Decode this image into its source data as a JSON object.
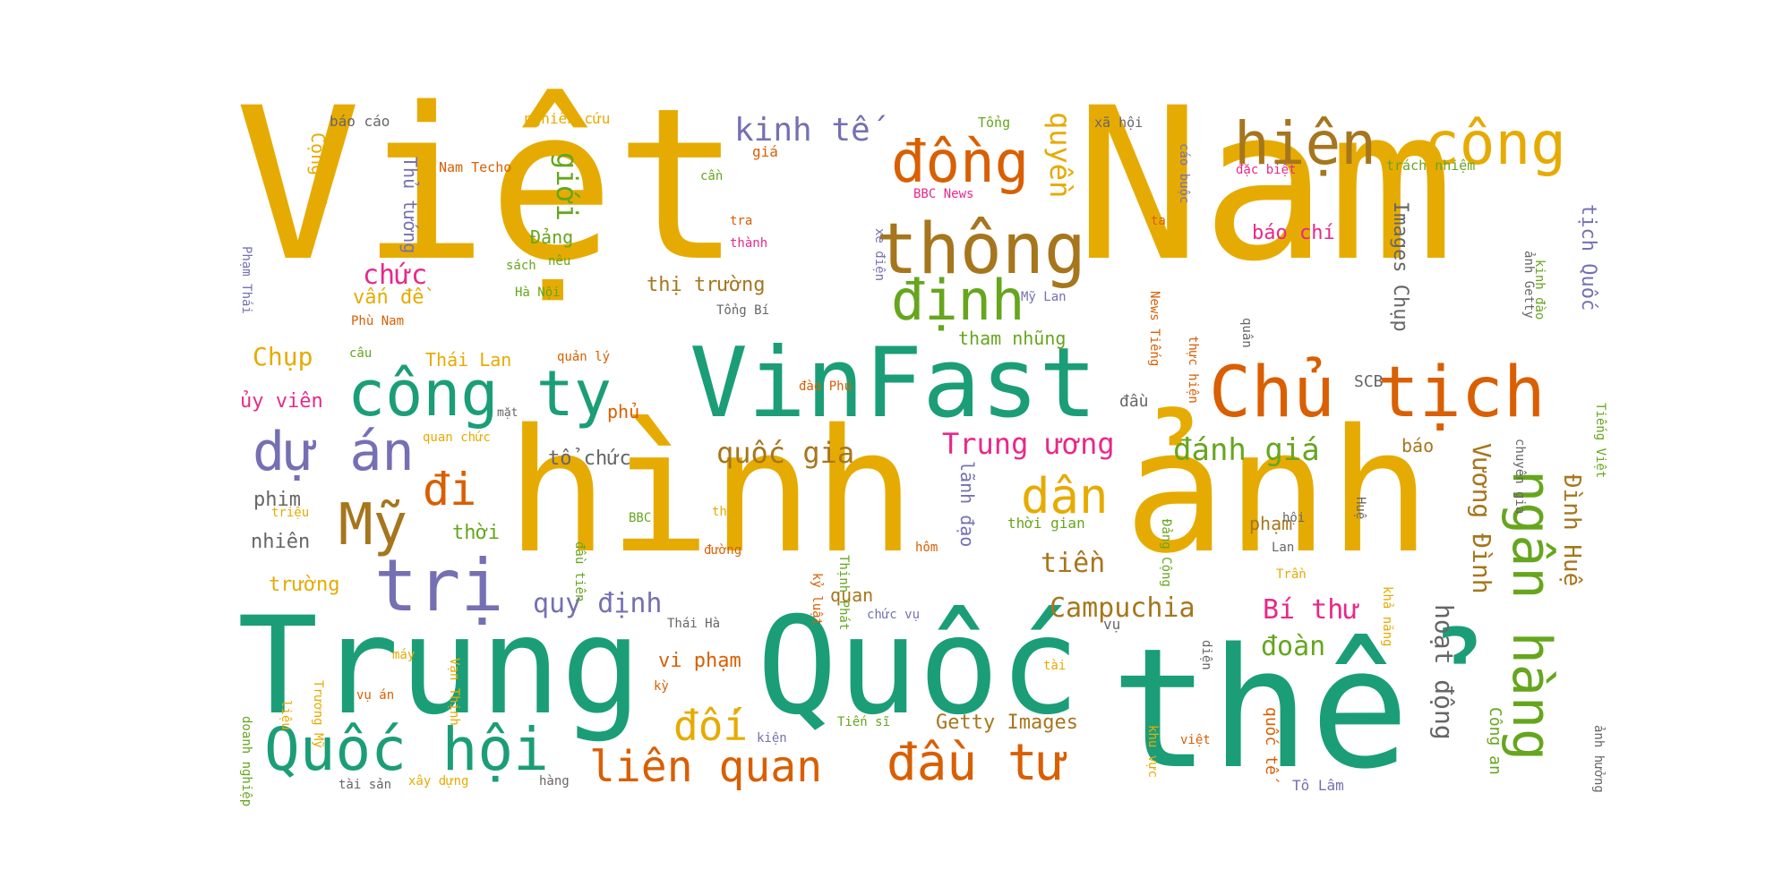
{
  "colors": {
    "gold": "#e6ab02",
    "teal": "#1b9e77",
    "orange": "#d95f02",
    "purple": "#7570b3",
    "green": "#66a61e",
    "brown": "#a6761d",
    "pink": "#e7298a",
    "gray": "#666666"
  },
  "words": [
    {
      "id": "viet",
      "text": "Việt"
    },
    {
      "id": "nam",
      "text": "Nam"
    },
    {
      "id": "hinh",
      "text": "hình"
    },
    {
      "id": "anh",
      "text": "ảnh"
    },
    {
      "id": "trung",
      "text": "Trung"
    },
    {
      "id": "quoc",
      "text": "Quốc"
    },
    {
      "id": "the",
      "text": "thể"
    },
    {
      "id": "vinfast",
      "text": "VinFast"
    },
    {
      "id": "chu-tich",
      "text": "Chủ tịch"
    },
    {
      "id": "thong",
      "text": "thông"
    },
    {
      "id": "hien",
      "text": "hiện"
    },
    {
      "id": "cong",
      "text": "công"
    },
    {
      "id": "dong",
      "text": "đồng"
    },
    {
      "id": "dinh",
      "text": "định"
    },
    {
      "id": "cong-ty",
      "text": "công ty"
    },
    {
      "id": "du-an",
      "text": "dự án"
    },
    {
      "id": "my",
      "text": "Mỹ"
    },
    {
      "id": "tri",
      "text": "trị"
    },
    {
      "id": "quoc-hoi",
      "text": "Quốc hội"
    },
    {
      "id": "ngan-hang",
      "text": "ngân hàng"
    },
    {
      "id": "dau-tu",
      "text": "đầu tư"
    },
    {
      "id": "lien-quan",
      "text": "liên quan"
    },
    {
      "id": "di",
      "text": "đi"
    },
    {
      "id": "dan",
      "text": "dân"
    },
    {
      "id": "kinh-te",
      "text": "kinh tế"
    },
    {
      "id": "quyen",
      "text": "quyền"
    },
    {
      "id": "gioi",
      "text": "giới"
    },
    {
      "id": "danh-gia",
      "text": "đánh giá"
    },
    {
      "id": "trung-uong",
      "text": "Trung ương"
    },
    {
      "id": "quoc-gia",
      "text": "quốc gia"
    },
    {
      "id": "campuchia",
      "text": "Campuchia"
    },
    {
      "id": "bi-thu",
      "text": "Bí thư"
    },
    {
      "id": "doi",
      "text": "đối"
    },
    {
      "id": "vuong-dinh",
      "text": "Vương Đình"
    },
    {
      "id": "dinh-hue",
      "text": "Đình Huệ"
    },
    {
      "id": "hoat-dong",
      "text": "hoạt động"
    },
    {
      "id": "quy-dinh",
      "text": "quy định"
    },
    {
      "id": "tien",
      "text": "tiền"
    },
    {
      "id": "doan",
      "text": "đoàn"
    },
    {
      "id": "chuc",
      "text": "chức"
    },
    {
      "id": "chup",
      "text": "Chụp"
    },
    {
      "id": "thi-truong",
      "text": "thị trường"
    },
    {
      "id": "getty-images",
      "text": "Getty Images"
    },
    {
      "id": "bao-chi",
      "text": "báo chí"
    },
    {
      "id": "tich-quoc",
      "text": "tịch Quốc"
    },
    {
      "id": "images-chup",
      "text": "Images Chụp"
    },
    {
      "id": "van-de",
      "text": "vấn đề"
    },
    {
      "id": "uy-vien",
      "text": "ủy viên"
    },
    {
      "id": "to-chuc",
      "text": "tổ chức"
    },
    {
      "id": "tham-nhung",
      "text": "tham nhũng"
    },
    {
      "id": "thai-lan",
      "text": "Thái Lan"
    },
    {
      "id": "cong-san",
      "text": "Cộng sản"
    },
    {
      "id": "thu-tuong",
      "text": "Thủ tướng"
    },
    {
      "id": "dang",
      "text": "Đảng"
    },
    {
      "id": "pham",
      "text": "phạm"
    },
    {
      "id": "phim",
      "text": "phim"
    },
    {
      "id": "nhien",
      "text": "nhiên"
    },
    {
      "id": "truong",
      "text": "trường"
    },
    {
      "id": "thoi",
      "text": "thời"
    },
    {
      "id": "bao",
      "text": "báo"
    },
    {
      "id": "vi-pham",
      "text": "vi phạm"
    },
    {
      "id": "quan",
      "text": "quan"
    },
    {
      "id": "scb",
      "text": "SCB"
    },
    {
      "id": "dau",
      "text": "đầu"
    },
    {
      "id": "phu",
      "text": "phủ"
    },
    {
      "id": "lanh-dao",
      "text": "lãnh đạo"
    },
    {
      "id": "thoi-gian",
      "text": "thời gian"
    },
    {
      "id": "cong-an",
      "text": "Công an"
    },
    {
      "id": "quoc-te",
      "text": "quốc tế"
    },
    {
      "id": "to-lam",
      "text": "Tô Lâm"
    },
    {
      "id": "bao-cao",
      "text": "báo cáo"
    },
    {
      "id": "nghien-cuu",
      "text": "nghiên cứu"
    },
    {
      "id": "tong",
      "text": "Tổng"
    },
    {
      "id": "xa-hoi",
      "text": "xã hội"
    },
    {
      "id": "nam-techo",
      "text": "Nam Techo"
    },
    {
      "id": "gia",
      "text": "giá"
    },
    {
      "id": "can",
      "text": "cần"
    },
    {
      "id": "bbc-news",
      "text": "BBC News"
    },
    {
      "id": "cao-buoc",
      "text": "cáo buộc"
    },
    {
      "id": "dac-biet",
      "text": "đặc biệt"
    },
    {
      "id": "trach-nhiem",
      "text": "trách nhiệm"
    },
    {
      "id": "ta",
      "text": "ta"
    },
    {
      "id": "tra",
      "text": "tra"
    },
    {
      "id": "thanh",
      "text": "thành"
    },
    {
      "id": "sach",
      "text": "sách"
    },
    {
      "id": "neu",
      "text": "nêu"
    },
    {
      "id": "ha-noi",
      "text": "Hà Nội"
    },
    {
      "id": "tong-bi",
      "text": "Tổng Bí"
    },
    {
      "id": "my-lan",
      "text": "Mỹ Lan"
    },
    {
      "id": "phu-nam",
      "text": "Phù Nam"
    },
    {
      "id": "cau",
      "text": "câu"
    },
    {
      "id": "quan-ly",
      "text": "quản lý"
    },
    {
      "id": "dao-phu",
      "text": "đào Phú"
    },
    {
      "id": "mat",
      "text": "mặt"
    },
    {
      "id": "quan-chuc",
      "text": "quan chức"
    },
    {
      "id": "trieu",
      "text": "triệu"
    },
    {
      "id": "bbc",
      "text": "BBC"
    },
    {
      "id": "thuc",
      "text": "thức"
    },
    {
      "id": "duong",
      "text": "đường"
    },
    {
      "id": "hom",
      "text": "hôm"
    },
    {
      "id": "hoi",
      "text": "hội"
    },
    {
      "id": "lan",
      "text": "Lan"
    },
    {
      "id": "tran",
      "text": "Trần"
    },
    {
      "id": "chuc-vu",
      "text": "chức vụ"
    },
    {
      "id": "vu",
      "text": "vụ"
    },
    {
      "id": "thai-ha",
      "text": "Thái Hà"
    },
    {
      "id": "tai",
      "text": "tài"
    },
    {
      "id": "may",
      "text": "máy"
    },
    {
      "id": "vu-an",
      "text": "vụ án"
    },
    {
      "id": "kien",
      "text": "kiện"
    },
    {
      "id": "tien-si",
      "text": "Tiến sĩ"
    },
    {
      "id": "tai-san",
      "text": "tài sản"
    },
    {
      "id": "xay-dung",
      "text": "xây dựng"
    },
    {
      "id": "hang",
      "text": "hàng"
    },
    {
      "id": "viet-small",
      "text": "việt"
    },
    {
      "id": "ky",
      "text": "kỳ"
    },
    {
      "id": "pham-thai",
      "text": "Phạm Thái"
    },
    {
      "id": "xe-dien",
      "text": "xe điện"
    },
    {
      "id": "news-tieng",
      "text": "News Tiếng"
    },
    {
      "id": "thuc-hien",
      "text": "thực hiện"
    },
    {
      "id": "quan2",
      "text": "quân"
    },
    {
      "id": "anh-getty",
      "text": "ảnh Getty"
    },
    {
      "id": "kinh-dao",
      "text": "kinh đào"
    },
    {
      "id": "tieng-viet",
      "text": "Tiếng Việt"
    },
    {
      "id": "chuyen-gia",
      "text": "chuyên gia"
    },
    {
      "id": "dau-tien",
      "text": "đầu tiên"
    },
    {
      "id": "thinh-phat",
      "text": "Thịnh Phát"
    },
    {
      "id": "ky-luat",
      "text": "kỷ luật"
    },
    {
      "id": "hue",
      "text": "Huệ"
    },
    {
      "id": "dang-cong",
      "text": "Đảng Cộng"
    },
    {
      "id": "kha-nang",
      "text": "khả năng"
    },
    {
      "id": "dien",
      "text": "diện"
    },
    {
      "id": "khu-vuc",
      "text": "khu vực"
    },
    {
      "id": "anh-huong",
      "text": "ảnh hưởng"
    },
    {
      "id": "doanh-nghiep",
      "text": "doanh nghiệp"
    },
    {
      "id": "lieu",
      "text": "liệu"
    },
    {
      "id": "truong-my",
      "text": "Trương Mỹ"
    },
    {
      "id": "van-thinh",
      "text": "Vạn Thịnh"
    }
  ]
}
